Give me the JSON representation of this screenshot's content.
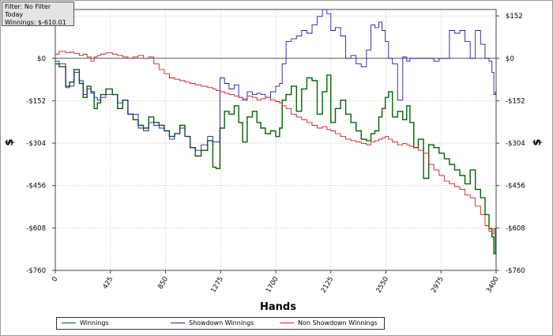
{
  "info": {
    "filter": "Filter: No Filter",
    "period": "Today",
    "winnings": "Winnings: $-610.01"
  },
  "chart_data": {
    "type": "line",
    "xlabel": "Hands",
    "ylabel": "$",
    "xlim": [
      0,
      3400
    ],
    "ylim": [
      -760,
      175
    ],
    "x_ticks": [
      0,
      425,
      850,
      1275,
      1700,
      2125,
      2550,
      2975,
      3400
    ],
    "y_ticks": [
      {
        "value": 152,
        "label": "$152"
      },
      {
        "value": 0,
        "label": "$0"
      },
      {
        "value": -152,
        "label": "-$152"
      },
      {
        "value": -304,
        "label": "-$304"
      },
      {
        "value": -456,
        "label": "-$456"
      },
      {
        "value": -608,
        "label": "-$608"
      },
      {
        "value": -760,
        "label": "-$760"
      }
    ],
    "grid": true,
    "zero_line": true,
    "legend_position": "bottom",
    "series": [
      {
        "name": "Winnings",
        "color": "#006400",
        "x": [
          0,
          60,
          100,
          120,
          170,
          200,
          230,
          260,
          290,
          310,
          340,
          360,
          420,
          460,
          500,
          540,
          580,
          620,
          660,
          700,
          740,
          780,
          820,
          860,
          900,
          940,
          980,
          1020,
          1060,
          1100,
          1150,
          1200,
          1230,
          1250,
          1290,
          1320,
          1360,
          1400,
          1430,
          1460,
          1500,
          1540,
          1570,
          1600,
          1640,
          1680,
          1720,
          1740,
          1760,
          1800,
          1840,
          1880,
          1920,
          1960,
          2000,
          2040,
          2080,
          2110,
          2140,
          2180,
          2220,
          2260,
          2300,
          2340,
          2380,
          2420,
          2450,
          2480,
          2510,
          2530,
          2560,
          2580,
          2620,
          2660,
          2700,
          2720,
          2750,
          2780,
          2820,
          2860,
          2900,
          2940,
          2980,
          3020,
          3060,
          3100,
          3140,
          3180,
          3220,
          3260,
          3300,
          3330,
          3360,
          3375,
          3390,
          3400
        ],
        "values": [
          -20,
          -30,
          -100,
          -85,
          -40,
          -90,
          -140,
          -100,
          -120,
          -180,
          -160,
          -130,
          -110,
          -130,
          -180,
          -150,
          -200,
          -220,
          -240,
          -250,
          -210,
          -230,
          -240,
          -260,
          -280,
          -270,
          -240,
          -280,
          -320,
          -350,
          -330,
          -295,
          -390,
          -395,
          -250,
          -190,
          -200,
          -170,
          -230,
          -300,
          -210,
          -190,
          -230,
          -250,
          -270,
          -260,
          -280,
          -250,
          -150,
          -130,
          -100,
          -190,
          -110,
          -70,
          -80,
          -200,
          -120,
          -60,
          -230,
          -180,
          -150,
          -200,
          -230,
          -260,
          -290,
          -295,
          -270,
          -260,
          -210,
          -180,
          -140,
          -120,
          -210,
          -190,
          -220,
          -170,
          -230,
          -320,
          -290,
          -430,
          -310,
          -320,
          -340,
          -360,
          -380,
          -400,
          -420,
          -450,
          -400,
          -470,
          -500,
          -560,
          -610,
          -640,
          -700,
          -610
        ]
      },
      {
        "name": "Showdown Winnings",
        "color": "#1e1ea8",
        "x": [
          0,
          60,
          100,
          120,
          170,
          200,
          230,
          260,
          290,
          310,
          340,
          360,
          420,
          460,
          500,
          540,
          580,
          620,
          660,
          700,
          740,
          780,
          820,
          860,
          900,
          940,
          980,
          1020,
          1060,
          1100,
          1150,
          1200,
          1230,
          1250,
          1290,
          1320,
          1360,
          1400,
          1430,
          1460,
          1500,
          1540,
          1570,
          1600,
          1640,
          1680,
          1720,
          1740,
          1760,
          1800,
          1840,
          1880,
          1920,
          1960,
          2000,
          2040,
          2080,
          2110,
          2140,
          2180,
          2220,
          2260,
          2300,
          2340,
          2380,
          2420,
          2450,
          2480,
          2510,
          2530,
          2560,
          2580,
          2620,
          2660,
          2700,
          2720,
          2750,
          2780,
          2820,
          2860,
          2900,
          2940,
          2980,
          3020,
          3060,
          3100,
          3140,
          3180,
          3220,
          3260,
          3300,
          3330,
          3360,
          3375,
          3390,
          3400
        ],
        "values": [
          -10,
          -20,
          -105,
          -100,
          -50,
          -80,
          -130,
          -110,
          -125,
          -140,
          -150,
          -140,
          -130,
          -130,
          -160,
          -150,
          -200,
          -200,
          -250,
          -260,
          -230,
          -240,
          -250,
          -260,
          -290,
          -270,
          -250,
          -280,
          -320,
          -330,
          -310,
          -280,
          -300,
          -300,
          -70,
          -90,
          -110,
          -95,
          -140,
          -150,
          -120,
          -130,
          -125,
          -130,
          -140,
          -120,
          -100,
          -90,
          -20,
          60,
          70,
          80,
          100,
          90,
          120,
          150,
          175,
          160,
          100,
          110,
          80,
          0,
          10,
          -20,
          -30,
          30,
          120,
          110,
          130,
          100,
          60,
          0,
          -20,
          -150,
          5,
          -10,
          0,
          0,
          0,
          0,
          0,
          -10,
          0,
          0,
          100,
          90,
          100,
          60,
          0,
          100,
          50,
          0,
          -10,
          -50,
          -130,
          -120
        ]
      },
      {
        "name": "Non Showdown Winnings",
        "color": "#cc1f1f",
        "x": [
          0,
          60,
          100,
          120,
          170,
          200,
          230,
          260,
          290,
          310,
          340,
          360,
          420,
          460,
          500,
          540,
          580,
          620,
          660,
          700,
          740,
          780,
          820,
          860,
          900,
          940,
          980,
          1020,
          1060,
          1100,
          1150,
          1200,
          1230,
          1250,
          1290,
          1320,
          1360,
          1400,
          1430,
          1460,
          1500,
          1540,
          1570,
          1600,
          1640,
          1680,
          1720,
          1740,
          1760,
          1800,
          1840,
          1880,
          1920,
          1960,
          2000,
          2040,
          2080,
          2110,
          2140,
          2180,
          2220,
          2260,
          2300,
          2340,
          2380,
          2420,
          2450,
          2480,
          2510,
          2530,
          2560,
          2580,
          2620,
          2660,
          2700,
          2720,
          2750,
          2780,
          2820,
          2860,
          2900,
          2940,
          2980,
          3020,
          3060,
          3100,
          3140,
          3180,
          3220,
          3260,
          3300,
          3330,
          3360,
          3375,
          3390,
          3400
        ],
        "values": [
          15,
          25,
          20,
          22,
          18,
          10,
          15,
          5,
          -10,
          5,
          10,
          15,
          20,
          15,
          10,
          5,
          0,
          5,
          10,
          0,
          5,
          -20,
          -40,
          -55,
          -70,
          -75,
          -80,
          -85,
          -90,
          -95,
          -100,
          -105,
          -110,
          -115,
          -120,
          -125,
          -130,
          -135,
          -140,
          -145,
          -135,
          -140,
          -150,
          -145,
          -140,
          -150,
          -155,
          -160,
          -170,
          -180,
          -200,
          -210,
          -220,
          -230,
          -240,
          -250,
          -245,
          -255,
          -260,
          -270,
          -280,
          -290,
          -295,
          -300,
          -305,
          -310,
          -300,
          -295,
          -290,
          -285,
          -280,
          -290,
          -300,
          -310,
          -305,
          -310,
          -315,
          -320,
          -330,
          -340,
          -380,
          -400,
          -420,
          -440,
          -450,
          -460,
          -470,
          -490,
          -500,
          -530,
          -560,
          -600,
          -620,
          -630,
          -610,
          -610
        ]
      }
    ]
  }
}
